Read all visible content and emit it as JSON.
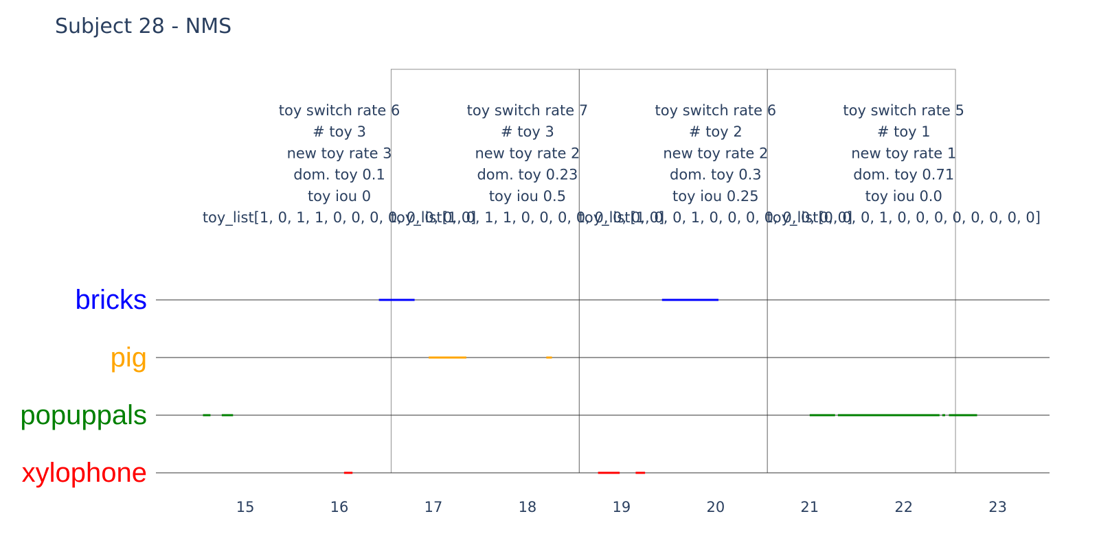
{
  "chart_data": {
    "type": "timeline",
    "title": "Subject 28 - NMS",
    "xlim": [
      14.05,
      23.55
    ],
    "xticks": [
      15,
      16,
      17,
      18,
      19,
      20,
      21,
      22,
      23
    ],
    "grid": false,
    "categories": [
      {
        "name": "bricks",
        "color": "#0000ff"
      },
      {
        "name": "pig",
        "color": "#ffa500"
      },
      {
        "name": "popuppals",
        "color": "#008000"
      },
      {
        "name": "xylophone",
        "color": "#ff0000"
      }
    ],
    "segments": [
      {
        "category": "bricks",
        "start": 16.42,
        "end": 16.8
      },
      {
        "category": "bricks",
        "start": 19.43,
        "end": 20.03
      },
      {
        "category": "pig",
        "start": 16.95,
        "end": 17.35
      },
      {
        "category": "pig",
        "start": 18.2,
        "end": 18.26
      },
      {
        "category": "popuppals",
        "start": 14.55,
        "end": 14.63
      },
      {
        "category": "popuppals",
        "start": 14.75,
        "end": 14.87
      },
      {
        "category": "popuppals",
        "start": 21.0,
        "end": 21.27
      },
      {
        "category": "popuppals",
        "start": 21.3,
        "end": 22.38
      },
      {
        "category": "popuppals",
        "start": 22.41,
        "end": 22.44
      },
      {
        "category": "popuppals",
        "start": 22.48,
        "end": 22.78
      },
      {
        "category": "xylophone",
        "start": 16.05,
        "end": 16.14
      },
      {
        "category": "xylophone",
        "start": 18.75,
        "end": 18.98
      },
      {
        "category": "xylophone",
        "start": 19.15,
        "end": 19.25
      }
    ],
    "windows": [
      {
        "start": 16.55,
        "end": 18.55
      },
      {
        "start": 18.55,
        "end": 20.55
      },
      {
        "start": 20.55,
        "end": 22.55
      }
    ],
    "annotations": [
      {
        "x": 16.0,
        "lines": [
          "toy switch rate 6",
          "# toy 3",
          "new toy rate 3",
          "dom. toy 0.1",
          "toy iou 0",
          "toy_list[1, 0, 1, 1, 0, 0, 0, 0, 0, 0, 0, 0]"
        ]
      },
      {
        "x": 18.0,
        "lines": [
          "toy switch rate 7",
          "# toy 3",
          "new toy rate 2",
          "dom. toy 0.23",
          "toy iou 0.5",
          "toy_list[1, 0, 1, 1, 0, 0, 0, 0, 0, 0, 0, 0]"
        ]
      },
      {
        "x": 20.0,
        "lines": [
          "toy switch rate 6",
          "# toy 2",
          "new toy rate 2",
          "dom. toy 0.3",
          "toy iou 0.25",
          "toy_list[1, 0, 0, 1, 0, 0, 0, 0, 0, 0, 0, 0]"
        ]
      },
      {
        "x": 22.0,
        "lines": [
          "toy switch rate 5",
          "# toy 1",
          "new toy rate 1",
          "dom. toy 0.71",
          "toy iou 0.0",
          "toy_list[0, 0, 0, 1, 0, 0, 0, 0, 0, 0, 0, 0]"
        ]
      }
    ]
  }
}
